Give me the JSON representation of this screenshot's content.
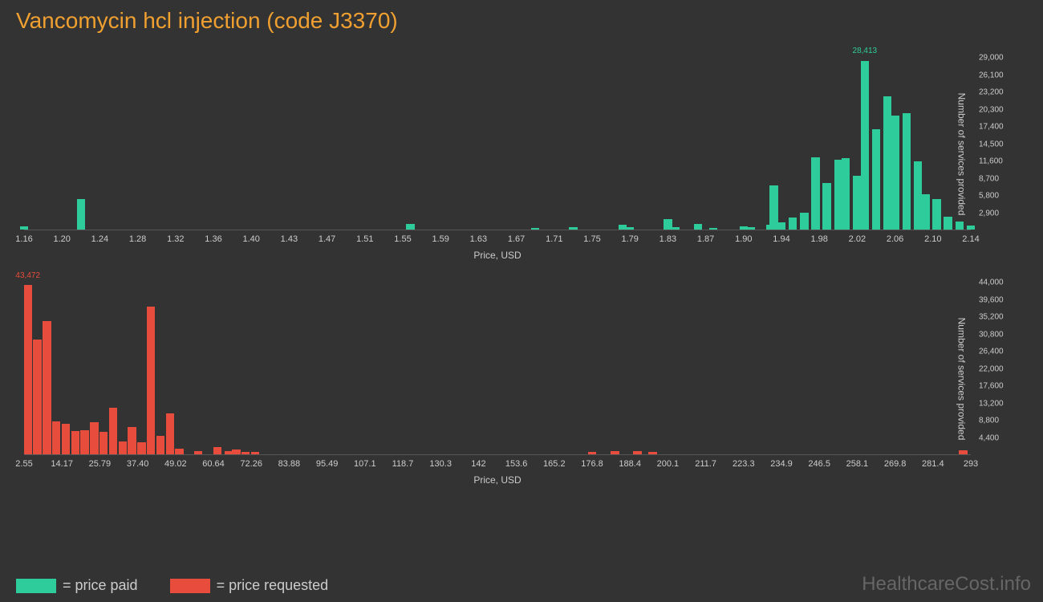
{
  "title": "Vancomycin hcl injection (code J3370)",
  "watermark": "HealthcareCost.info",
  "colors": {
    "background": "#333333",
    "title": "#f0a030",
    "text": "#cccccc",
    "paid": "#2ecc9a",
    "requested": "#e74c3c"
  },
  "legend": {
    "paid_label": "= price paid",
    "requested_label": "= price requested"
  },
  "axis_labels": {
    "x": "Price, USD",
    "y": "Number of services provided"
  },
  "chart1": {
    "type": "histogram",
    "color": "#2ecc9a",
    "x_ticks": [
      "1.16",
      "1.20",
      "1.24",
      "1.28",
      "1.32",
      "1.36",
      "1.40",
      "1.43",
      "1.47",
      "1.51",
      "1.55",
      "1.59",
      "1.63",
      "1.67",
      "1.71",
      "1.75",
      "1.79",
      "1.83",
      "1.87",
      "1.90",
      "1.94",
      "1.98",
      "2.02",
      "2.06",
      "2.10",
      "2.14"
    ],
    "y_ticks": [
      2900,
      5800,
      8700,
      11600,
      14500,
      17400,
      20300,
      23200,
      26100,
      29000
    ],
    "y_max": 29000,
    "peak_label": "28,413",
    "peak_x_index": 22.2,
    "bars": [
      {
        "x": 0,
        "v": 600
      },
      {
        "x": 1.5,
        "v": 5200
      },
      {
        "x": 10.2,
        "v": 1000
      },
      {
        "x": 13.5,
        "v": 300
      },
      {
        "x": 14.5,
        "v": 400
      },
      {
        "x": 15.8,
        "v": 800
      },
      {
        "x": 16.0,
        "v": 400
      },
      {
        "x": 17.0,
        "v": 1800
      },
      {
        "x": 17.2,
        "v": 400
      },
      {
        "x": 17.8,
        "v": 900
      },
      {
        "x": 18.2,
        "v": 300
      },
      {
        "x": 19.0,
        "v": 500
      },
      {
        "x": 19.2,
        "v": 400
      },
      {
        "x": 19.7,
        "v": 800
      },
      {
        "x": 19.8,
        "v": 7400
      },
      {
        "x": 20.0,
        "v": 1200
      },
      {
        "x": 20.3,
        "v": 2100
      },
      {
        "x": 20.6,
        "v": 2900
      },
      {
        "x": 20.9,
        "v": 12200
      },
      {
        "x": 21.2,
        "v": 7800
      },
      {
        "x": 21.5,
        "v": 11800
      },
      {
        "x": 21.7,
        "v": 12000
      },
      {
        "x": 22.0,
        "v": 9100
      },
      {
        "x": 22.2,
        "v": 28413
      },
      {
        "x": 22.5,
        "v": 17000
      },
      {
        "x": 22.8,
        "v": 22500
      },
      {
        "x": 23.0,
        "v": 19200
      },
      {
        "x": 23.3,
        "v": 19600
      },
      {
        "x": 23.6,
        "v": 11500
      },
      {
        "x": 23.8,
        "v": 5900
      },
      {
        "x": 24.1,
        "v": 5100
      },
      {
        "x": 24.4,
        "v": 2200
      },
      {
        "x": 24.7,
        "v": 1300
      },
      {
        "x": 25.0,
        "v": 700
      }
    ]
  },
  "chart2": {
    "type": "histogram",
    "color": "#e74c3c",
    "x_ticks": [
      "2.55",
      "14.17",
      "25.79",
      "37.40",
      "49.02",
      "60.64",
      "72.26",
      "83.88",
      "95.49",
      "107.1",
      "118.7",
      "130.3",
      "142",
      "153.6",
      "165.2",
      "176.8",
      "188.4",
      "200.1",
      "211.7",
      "223.3",
      "234.9",
      "246.5",
      "258.1",
      "269.8",
      "281.4",
      "293"
    ],
    "y_ticks": [
      4400,
      8800,
      13200,
      17600,
      22000,
      26400,
      30800,
      35200,
      39600,
      44000
    ],
    "y_max": 44000,
    "peak_label": "43,472",
    "peak_x_index": 0.1,
    "bars": [
      {
        "x": 0.1,
        "v": 43472
      },
      {
        "x": 0.35,
        "v": 29500
      },
      {
        "x": 0.6,
        "v": 34200
      },
      {
        "x": 0.85,
        "v": 8500
      },
      {
        "x": 1.1,
        "v": 7800
      },
      {
        "x": 1.35,
        "v": 6000
      },
      {
        "x": 1.6,
        "v": 6200
      },
      {
        "x": 1.85,
        "v": 8200
      },
      {
        "x": 2.1,
        "v": 5800
      },
      {
        "x": 2.35,
        "v": 12000
      },
      {
        "x": 2.6,
        "v": 3200
      },
      {
        "x": 2.85,
        "v": 7000
      },
      {
        "x": 3.1,
        "v": 3000
      },
      {
        "x": 3.35,
        "v": 37800
      },
      {
        "x": 3.6,
        "v": 4800
      },
      {
        "x": 3.85,
        "v": 10500
      },
      {
        "x": 4.1,
        "v": 1500
      },
      {
        "x": 4.6,
        "v": 800
      },
      {
        "x": 5.1,
        "v": 1800
      },
      {
        "x": 5.4,
        "v": 900
      },
      {
        "x": 5.6,
        "v": 1200
      },
      {
        "x": 5.85,
        "v": 700
      },
      {
        "x": 6.1,
        "v": 600
      },
      {
        "x": 15.0,
        "v": 700
      },
      {
        "x": 15.6,
        "v": 900
      },
      {
        "x": 16.2,
        "v": 800
      },
      {
        "x": 16.6,
        "v": 600
      },
      {
        "x": 24.8,
        "v": 1100
      }
    ]
  }
}
